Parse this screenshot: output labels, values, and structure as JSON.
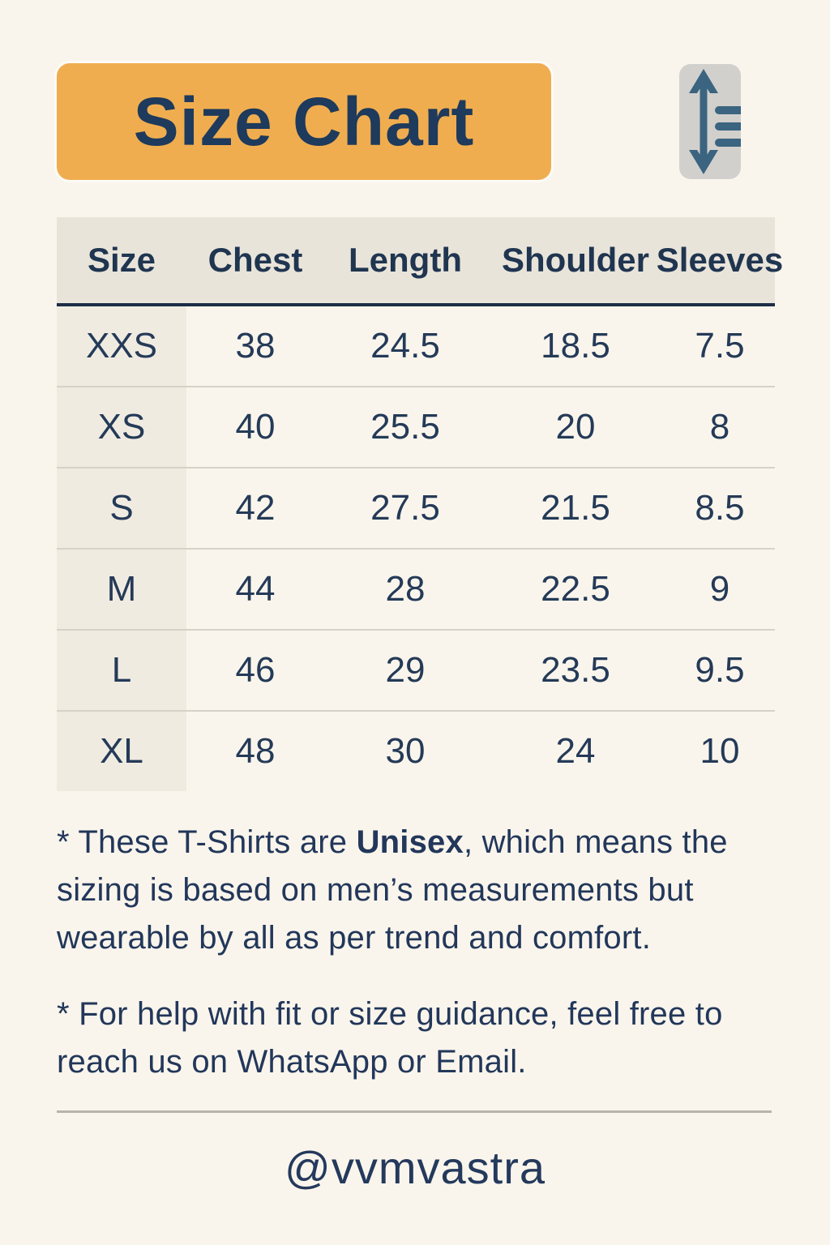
{
  "page": {
    "background_color": "#faf5ec",
    "accent_color": "#f0ad4f",
    "text_color": "#243a58"
  },
  "header": {
    "title": "Size Chart",
    "badge_color": "#f0ad4f",
    "title_color": "#1e3a5c",
    "icon": "vertical-resize-ruler-icon",
    "icon_color": "#3a6480",
    "icon_box_color": "#d2d0cc"
  },
  "size_table": {
    "columns": [
      "Size",
      "Chest",
      "Length",
      "Shoulder",
      "Sleeves"
    ],
    "rows": [
      [
        "XXS",
        "38",
        "24.5",
        "18.5",
        "7.5"
      ],
      [
        "XS",
        "40",
        "25.5",
        "20",
        "8"
      ],
      [
        "S",
        "42",
        "27.5",
        "21.5",
        "8.5"
      ],
      [
        "M",
        "44",
        "28",
        "22.5",
        "9"
      ],
      [
        "L",
        "46",
        "29",
        "23.5",
        "9.5"
      ],
      [
        "XL",
        "48",
        "30",
        "24",
        "10"
      ]
    ],
    "header_band_color": "#e9e4da",
    "size_column_color": "#f0ebe1"
  },
  "notes": [
    {
      "prefix": "* These T-Shirts are ",
      "bold": "Unisex",
      "suffix": ", which means the sizing is based on men’s measurements but wearable by all as per trend and comfort."
    },
    {
      "prefix": "* For help with fit or size guidance, feel free to reach us on WhatsApp or Email.",
      "bold": "",
      "suffix": ""
    }
  ],
  "footer": {
    "handle": "@vvmvastra"
  }
}
